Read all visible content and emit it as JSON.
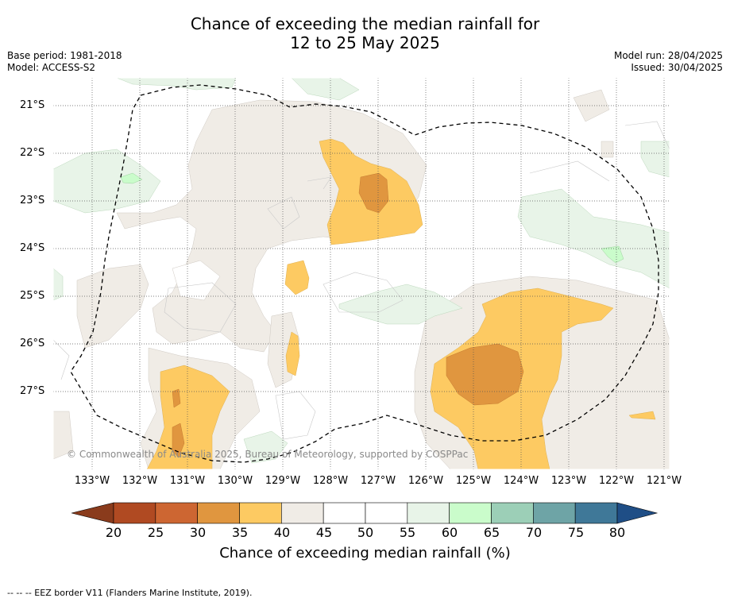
{
  "header": {
    "title_line1": "Chance of exceeding the median rainfall for",
    "title_line2": "12 to 25 May 2025",
    "base_period": "Base period: 1981-2018",
    "model": "Model: ACCESS-S2",
    "model_run": "Model run: 28/04/2025",
    "issued": "Issued: 30/04/2025"
  },
  "map": {
    "lat_labels": [
      "21°S",
      "22°S",
      "23°S",
      "24°S",
      "25°S",
      "26°S",
      "27°S"
    ],
    "lon_labels": [
      "133°W",
      "132°W",
      "131°W",
      "130°W",
      "129°W",
      "128°W",
      "127°W",
      "126°W",
      "125°W",
      "124°W",
      "123°W",
      "122°W",
      "121°W"
    ],
    "copyright": "© Commonwealth of Australia 2025, Bureau of Meteorology, supported by COSPPac"
  },
  "colorbar": {
    "ticks": [
      "20",
      "25",
      "30",
      "35",
      "40",
      "45",
      "50",
      "55",
      "60",
      "65",
      "70",
      "75",
      "80"
    ],
    "label": "Chance of exceeding median rainfall (%)",
    "colors": [
      "#b04a22",
      "#cd6632",
      "#e0963f",
      "#fdca62",
      "#f0ece6",
      "#ffffff",
      "#ffffff",
      "#e8f4e8",
      "#cafccb",
      "#9ccfb7",
      "#6ea4a6",
      "#3f7898"
    ],
    "low_extend_color": "#8a3b1c",
    "high_extend_color": "#1f4e86"
  },
  "footer": {
    "legend_text": "--  --  -- EEZ border V11 (Flanders Marine Institute, 2019)."
  }
}
